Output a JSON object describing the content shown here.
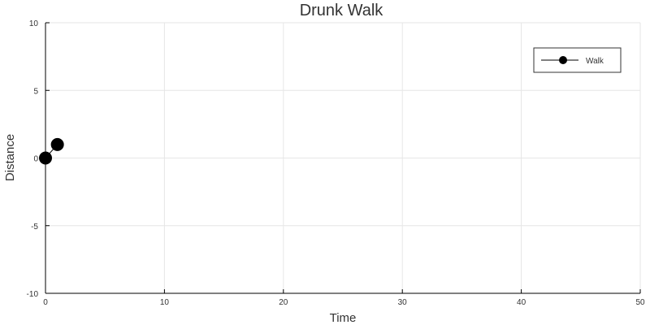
{
  "chart_data": {
    "type": "line",
    "title": "Drunk Walk",
    "xlabel": "Time",
    "ylabel": "Distance",
    "xlim": [
      0,
      50
    ],
    "ylim": [
      -10,
      10
    ],
    "x_ticks": [
      0,
      10,
      20,
      30,
      40,
      50
    ],
    "y_ticks": [
      -10,
      -5,
      0,
      5,
      10
    ],
    "grid": true,
    "legend": {
      "position": "top-right"
    },
    "series": [
      {
        "name": "Walk",
        "color": "#000000",
        "marker": "circle",
        "x": [
          0,
          1
        ],
        "y": [
          0,
          1
        ]
      }
    ]
  }
}
